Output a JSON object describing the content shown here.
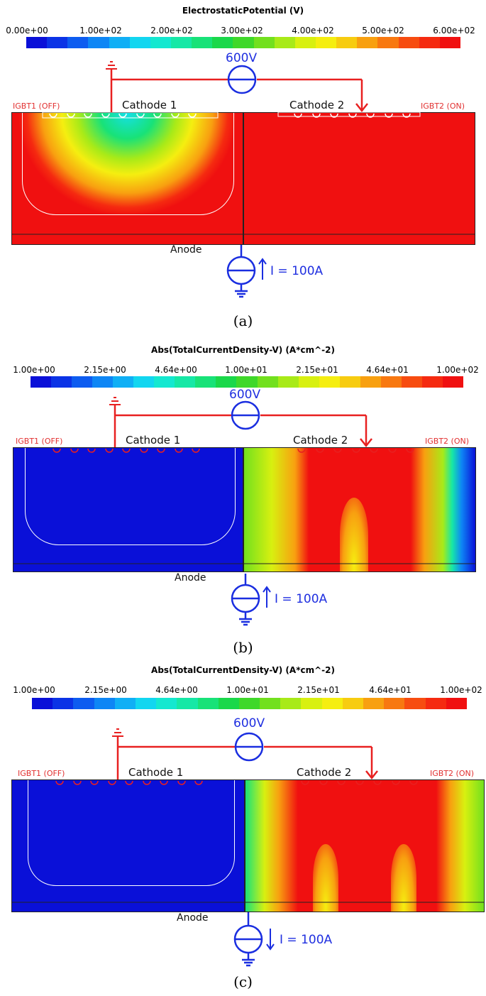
{
  "colors": {
    "scale": [
      "#0a10d8",
      "#0b33e6",
      "#0d5cf0",
      "#0e86f5",
      "#10aff5",
      "#12d6f0",
      "#14e8d0",
      "#16e8a6",
      "#18e278",
      "#1ad84a",
      "#3fd82a",
      "#72e01e",
      "#a8ea18",
      "#d8f010",
      "#f5ee10",
      "#f7cc10",
      "#f8a010",
      "#f87810",
      "#f74c10",
      "#f52a10",
      "#f01010"
    ],
    "circuit": "#e82020",
    "source": "#1a2ee0",
    "contour": "#ffffff"
  },
  "panels": [
    {
      "colorbar_title": "ElectrostaticPotential (V)",
      "ticks": [
        "0.00e+00",
        "1.00e+02",
        "2.00e+02",
        "3.00e+02",
        "4.00e+02",
        "5.00e+02",
        "6.00e+02"
      ],
      "label_left": "IGBT1 (OFF)",
      "label_right": "IGBT2 (ON)",
      "cathode1": "Cathode 1",
      "cathode2": "Cathode 2",
      "anode": "Anode",
      "voltage": "600V",
      "current": "I = 100A",
      "current_direction": "up",
      "caption": "(a)"
    },
    {
      "colorbar_title": "Abs(TotalCurrentDensity-V) (A*cm^-2)",
      "ticks": [
        "1.00e+00",
        "2.15e+00",
        "4.64e+00",
        "1.00e+01",
        "2.15e+01",
        "4.64e+01",
        "1.00e+02"
      ],
      "label_left": "IGBT1 (OFF)",
      "label_right": "IGBT2 (ON)",
      "cathode1": "Cathode 1",
      "cathode2": "Cathode 2",
      "anode": "Anode",
      "voltage": "600V",
      "current": "I = 100A",
      "current_direction": "up",
      "caption": "(b)"
    },
    {
      "colorbar_title": "Abs(TotalCurrentDensity-V) (A*cm^-2)",
      "ticks": [
        "1.00e+00",
        "2.15e+00",
        "4.64e+00",
        "1.00e+01",
        "2.15e+01",
        "4.64e+01",
        "1.00e+02"
      ],
      "label_left": "IGBT1 (OFF)",
      "label_right": "IGBT2 (ON)",
      "cathode1": "Cathode 1",
      "cathode2": "Cathode 2",
      "anode": "Anode",
      "voltage": "600V",
      "current": "I = 100A",
      "current_direction": "down",
      "caption": "(c)"
    }
  ]
}
